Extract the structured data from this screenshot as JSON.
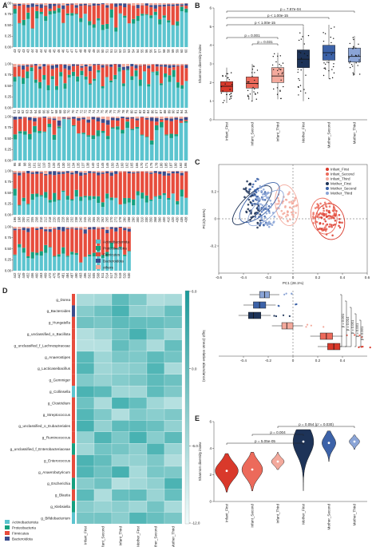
{
  "colors": {
    "actinobacteriota": "#5bc4cf",
    "proteobacteria": "#15a07f",
    "firmicutes": "#e74c3c",
    "bacteroidota": "#3b4c8c",
    "others": "#f2a99a",
    "infant_first": "#d9392b",
    "infant_second": "#ec6a5b",
    "infant_third": "#f3a99c",
    "mother_first": "#1d3358",
    "mother_second": "#3c62a8",
    "mother_third": "#8aa4d6"
  },
  "panels": {
    "a": "A",
    "b": "B",
    "c": "C",
    "d": "D",
    "e": "E"
  },
  "chart_data": [
    {
      "id": "A",
      "type": "bar",
      "stacked": true,
      "ylim": [
        0,
        1.0
      ],
      "yticks": [
        "0.00",
        "0.25",
        "0.50",
        "0.75",
        "1.00"
      ],
      "rows": [
        {
          "samples": [
            "43",
            "43",
            "43",
            "43",
            "44",
            "44",
            "44",
            "45",
            "45",
            "45",
            "46",
            "46",
            "47",
            "47",
            "47",
            "48",
            "48",
            "49",
            "49",
            "50",
            "50",
            "51",
            "51",
            "52",
            "52",
            "53",
            "53",
            "54",
            "54",
            "55",
            "56",
            "56",
            "57",
            "57",
            "58",
            "58",
            "59",
            "59",
            "60",
            "60"
          ]
        },
        {
          "samples": [
            "61",
            "62",
            "62",
            "63",
            "64",
            "64",
            "65",
            "66",
            "66",
            "67",
            "68",
            "68",
            "69",
            "70",
            "70",
            "71",
            "72",
            "72",
            "73",
            "74",
            "74",
            "75",
            "76",
            "76",
            "77",
            "78",
            "78",
            "79",
            "80",
            "81",
            "82",
            "83",
            "84",
            "86",
            "87",
            "87",
            "88",
            "89",
            "90",
            "91",
            "94",
            "94"
          ]
        },
        {
          "samples": [
            "95",
            "96",
            "98",
            "100",
            "101",
            "102",
            "110",
            "113",
            "120",
            "125",
            "130",
            "132",
            "134",
            "135",
            "137",
            "138",
            "140",
            "141",
            "145",
            "146",
            "150",
            "154",
            "160",
            "162",
            "165",
            "166",
            "170",
            "171",
            "175",
            "178",
            "180",
            "185",
            "187",
            "190",
            "192",
            "195"
          ]
        },
        {
          "samples": [
            "196",
            "198",
            "200",
            "201",
            "205",
            "208",
            "210",
            "212",
            "218",
            "220",
            "225",
            "228",
            "230",
            "232",
            "238",
            "240",
            "245",
            "250",
            "255",
            "258",
            "262",
            "265",
            "270",
            "272",
            "278",
            "280",
            "288",
            "290",
            "300",
            "310",
            "330",
            "350",
            "368",
            "390",
            "400",
            "410",
            "420",
            "430",
            "435",
            "438"
          ]
        },
        {
          "samples": [
            "442",
            "442",
            "449",
            "452",
            "456",
            "460",
            "463",
            "469",
            "472",
            "475",
            "478",
            "481",
            "484",
            "487",
            "490",
            "493",
            "496",
            "502",
            "505",
            "508",
            "511",
            "514",
            "517",
            "518",
            "519",
            "520",
            "530"
          ]
        }
      ],
      "legend": [
        "Actinobacteriota",
        "Proteobacteria",
        "Firmicutes",
        "Bacteroidota",
        "others"
      ]
    },
    {
      "id": "B",
      "type": "box",
      "ylabel": "Shannon diversity index",
      "ylim": [
        0,
        6
      ],
      "yticks": [
        "0",
        "1",
        "2",
        "3",
        "4",
        "5",
        "6"
      ],
      "categories": [
        "Infant_First",
        "Infant_Second",
        "Infant_Third",
        "Mother_First",
        "Mother_Second",
        "Mother_Third"
      ],
      "boxes": [
        {
          "q1": 1.5,
          "median": 1.8,
          "q3": 2.05,
          "lo": 0.9,
          "hi": 2.8
        },
        {
          "q1": 1.7,
          "median": 1.95,
          "q3": 2.3,
          "lo": 1.0,
          "hi": 3.0
        },
        {
          "q1": 2.0,
          "median": 2.35,
          "q3": 2.8,
          "lo": 1.1,
          "hi": 3.6
        },
        {
          "q1": 2.8,
          "median": 3.25,
          "q3": 3.75,
          "lo": 1.0,
          "hi": 5.0
        },
        {
          "q1": 3.2,
          "median": 3.6,
          "q3": 4.0,
          "lo": 2.2,
          "hi": 5.1
        },
        {
          "q1": 3.1,
          "median": 3.4,
          "q3": 3.85,
          "lo": 2.4,
          "hi": 4.5
        }
      ],
      "annotations": [
        "p = 7.87e-04",
        "p < 1.00e-15",
        "p < 1.00e-15",
        "p = 0.001",
        "p = 0.031"
      ]
    },
    {
      "id": "C",
      "type": "scatter",
      "xlabel": "PC1 (28.1%)",
      "ylabel": "PC2(5.55%)",
      "xlim": [
        -0.6,
        0.6
      ],
      "ylim": [
        -0.4,
        0.4
      ],
      "xticks": [
        "-0.6",
        "-0.4",
        "-0.2",
        "0",
        "0.2",
        "0.4",
        "0.6"
      ],
      "yticks": [
        "-0.2",
        "0",
        "0.2"
      ],
      "legend": [
        "Infant_First",
        "Infant_Second",
        "Infant_Third",
        "Mother_First",
        "Mother_Second",
        "Mother_Third"
      ],
      "centroids": [
        {
          "x": 0.3,
          "y": -0.02
        },
        {
          "x": 0.25,
          "y": 0.02
        },
        {
          "x": -0.05,
          "y": 0.1
        },
        {
          "x": -0.33,
          "y": 0.1
        },
        {
          "x": -0.27,
          "y": 0.12
        },
        {
          "x": -0.22,
          "y": 0.08
        }
      ],
      "pc1_summary": [
        {
          "group": "Mother_Third",
          "q1": -0.27,
          "median": -0.23,
          "q3": -0.19
        },
        {
          "group": "Mother_Second",
          "q1": -0.32,
          "median": -0.27,
          "q3": -0.22
        },
        {
          "group": "Mother_First",
          "q1": -0.36,
          "median": -0.32,
          "q3": -0.26
        },
        {
          "group": "Infant_Third",
          "q1": -0.09,
          "median": -0.05,
          "q3": 0.0
        },
        {
          "group": "Infant_Second",
          "q1": 0.22,
          "median": 0.27,
          "q3": 0.32
        },
        {
          "group": "Infant_First",
          "q1": 0.28,
          "median": 0.33,
          "q3": 0.38
        }
      ],
      "pc1_annotations": [
        "p = 0.001",
        "p = 0.014",
        "p = 0.001",
        "p = 0.001",
        "p = 0.001"
      ]
    },
    {
      "id": "D",
      "type": "heatmap",
      "genera": [
        "g_Dorea",
        "g_Bacteroides",
        "g_Hungatella",
        "g_unclassified_o_Bacillota",
        "g_unclassified_f_Lachnospiraceae",
        "g_Anaerostipes",
        "g_Lacticaseibacillus",
        "g_Gemmiger",
        "g_Collinsella",
        "g_Clostridium",
        "g_Streptococcus",
        "g_unclassified_o_Eubacteriales",
        "g_Ruminococcus",
        "g_unclassified_f_Enterobacteriaceae",
        "g_Enterococcus",
        "g_Anaerobutyricum",
        "g_Escherichia",
        "g_Blautia",
        "g_Klebsiella",
        "g_Bifidobacterium"
      ],
      "phylum_of_row": [
        "firmicutes",
        "bacteroidota",
        "firmicutes",
        "firmicutes",
        "firmicutes",
        "firmicutes",
        "firmicutes",
        "firmicutes",
        "actinobacteriota",
        "firmicutes",
        "firmicutes",
        "firmicutes",
        "firmicutes",
        "proteobacteria",
        "firmicutes",
        "firmicutes",
        "proteobacteria",
        "firmicutes",
        "proteobacteria",
        "actinobacteriota"
      ],
      "columns": [
        "Infant_First",
        "Infant_Second",
        "Infant_Third",
        "Mother_First",
        "Mother_Second",
        "Mother_Third"
      ],
      "colorbar_label": "log2 (mean relative abundance)",
      "colorbar_ticks": [
        "6.0",
        "0.0",
        "-6.0",
        "-12.0"
      ],
      "legend": [
        "Actinobacteriota",
        "Proteobacteria",
        "Firmicutes",
        "Bacteroidota"
      ]
    },
    {
      "id": "E",
      "type": "violin",
      "ylabel": "Shannon diversity index",
      "ylim": [
        0,
        6
      ],
      "yticks": [
        "0",
        "2",
        "4",
        "6"
      ],
      "categories": [
        "Infant_First",
        "Infant_Second",
        "Infant_Third",
        "Mother_First",
        "Mother_Second",
        "Mother_Third"
      ],
      "violins": [
        {
          "median": 2.3,
          "lo": 0.7,
          "hi": 3.6,
          "width": 1.0
        },
        {
          "median": 2.4,
          "lo": 0.8,
          "hi": 3.7,
          "width": 0.9
        },
        {
          "median": 3.0,
          "lo": 2.4,
          "hi": 3.7,
          "width": 0.55
        },
        {
          "median": 4.5,
          "lo": 0.8,
          "hi": 5.4,
          "width": 0.9
        },
        {
          "median": 4.4,
          "lo": 3.0,
          "hi": 5.3,
          "width": 0.6
        },
        {
          "median": 4.5,
          "lo": 3.9,
          "hi": 5.0,
          "width": 0.45
        }
      ],
      "annotations": [
        "p = 0.054 (p' = 0.030)",
        "p = 0.004",
        "p = 5.05e-05"
      ]
    }
  ]
}
